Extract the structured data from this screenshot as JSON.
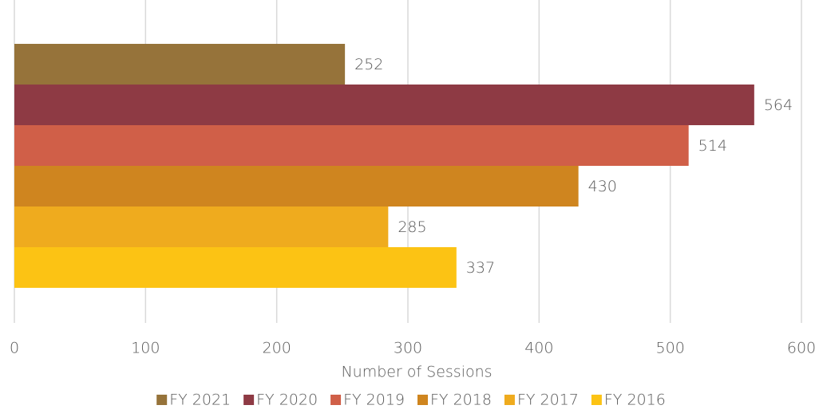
{
  "chart_data": {
    "type": "barh",
    "categories": [
      null
    ],
    "series": [
      {
        "name": "FY 2021",
        "color": "#96733a",
        "values": [
          252
        ]
      },
      {
        "name": "FY 2020",
        "color": "#8e3a44",
        "values": [
          564
        ]
      },
      {
        "name": "FY 2019",
        "color": "#d05f48",
        "values": [
          514
        ]
      },
      {
        "name": "FY 2018",
        "color": "#cf851f",
        "values": [
          430
        ]
      },
      {
        "name": "FY 2017",
        "color": "#efab1e",
        "values": [
          285
        ]
      },
      {
        "name": "FY 2016",
        "color": "#fcc314",
        "values": [
          337
        ]
      }
    ],
    "x_label": "Number of Sessions",
    "xlim": [
      0,
      600
    ],
    "xticks": [
      0,
      100,
      200,
      300,
      400,
      500,
      600
    ],
    "grid": true,
    "legend": "bottom"
  }
}
